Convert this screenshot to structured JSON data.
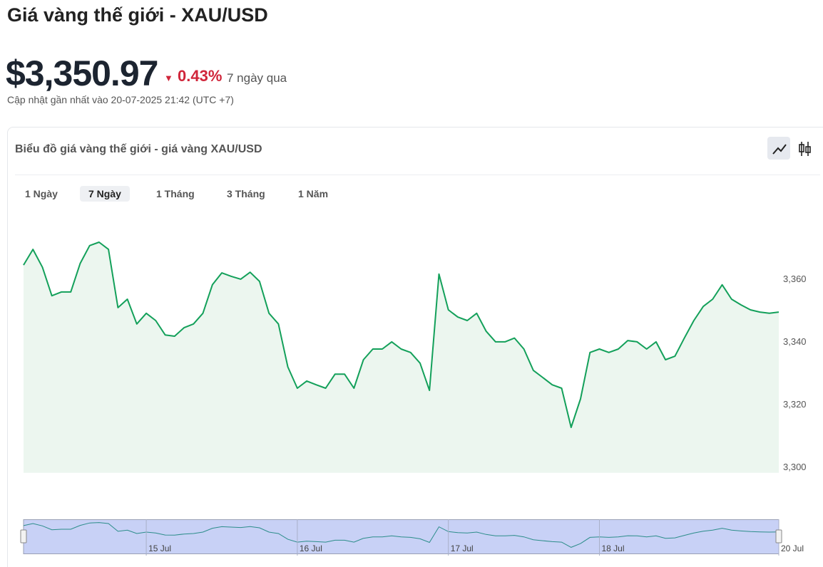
{
  "header": {
    "title": "Giá vàng thế giới - XAU/USD",
    "price": "$3,350.97",
    "change": "0.43%",
    "period": "7 ngày qua",
    "updated": "Cập nhật gần nhất vào 20-07-2025 21:42 (UTC +7)"
  },
  "card": {
    "title": "Biểu đồ giá vàng thế giới - giá vàng XAU/USD",
    "tabs": [
      "1 Ngày",
      "7 Ngày",
      "1 Tháng",
      "3 Tháng",
      "1 Năm"
    ],
    "active_tab": 1
  },
  "chart_data": {
    "type": "line",
    "color": "#13a05a",
    "values": [
      3364.3,
      3369.3,
      3363.6,
      3354.5,
      3355.7,
      3355.7,
      3364.8,
      3370.5,
      3371.6,
      3369.3,
      3350.7,
      3353.4,
      3345.5,
      3348.9,
      3346.6,
      3342,
      3341.6,
      3344.3,
      3345.5,
      3348.9,
      3358,
      3361.8,
      3360.7,
      3359.8,
      3362,
      3359.1,
      3348.9,
      3345.5,
      3331.8,
      3325,
      3327.3,
      3326.1,
      3325,
      3329.5,
      3329.5,
      3325,
      3334.1,
      3337.5,
      3337.5,
      3339.8,
      3337.5,
      3336.4,
      3333,
      3324.3,
      3361.4,
      3350,
      3347.7,
      3346.6,
      3348.9,
      3343.2,
      3339.8,
      3339.8,
      3341,
      3337.5,
      3330.7,
      3328.4,
      3326.1,
      3325,
      3312.5,
      3321.6,
      3336.4,
      3337.5,
      3336.4,
      3337.5,
      3340.2,
      3339.8,
      3337.5,
      3339.8,
      3334.1,
      3335.2,
      3341,
      3346.6,
      3351.1,
      3353.4,
      3358,
      3353.4,
      3351.6,
      3350,
      3349.3,
      3348.9,
      3349.3
    ],
    "xlim": [
      0,
      80
    ],
    "ylim": [
      3298,
      3376
    ],
    "yticks": [
      {
        "value": 3300,
        "label": "3,300"
      },
      {
        "value": 3320,
        "label": "3,320"
      },
      {
        "value": 3340,
        "label": "3,340"
      },
      {
        "value": 3360,
        "label": "3,360"
      }
    ],
    "xticks": [
      {
        "value": 13,
        "label": "15 Jul"
      },
      {
        "value": 29,
        "label": "16 Jul"
      },
      {
        "value": 45,
        "label": "17 Jul"
      },
      {
        "value": 61,
        "label": "18 Jul"
      },
      {
        "value": 80,
        "label": "20 Jul"
      }
    ]
  }
}
